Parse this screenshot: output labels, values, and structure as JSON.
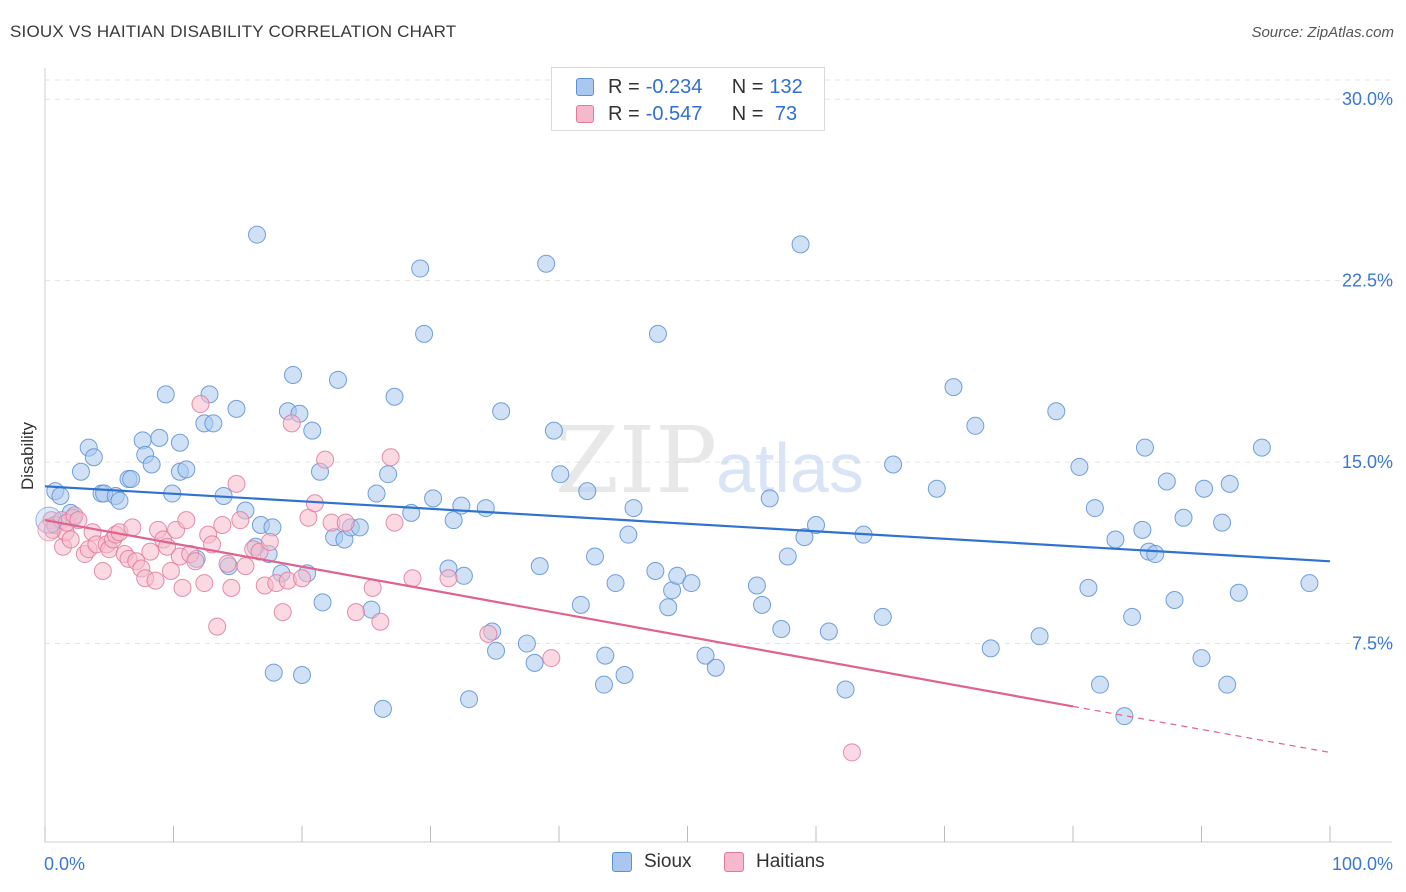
{
  "header": {
    "title": "SIOUX VS HAITIAN DISABILITY CORRELATION CHART",
    "source": "Source: ZipAtlas.com"
  },
  "legend": {
    "rows": [
      {
        "r_label": "R = ",
        "r_value": "-0.234",
        "n_label": "N = ",
        "n_value": "132"
      },
      {
        "r_label": "R = ",
        "r_value": "-0.547",
        "n_label": "N = ",
        "n_value": " 73"
      }
    ]
  },
  "watermark": {
    "zip": "ZIP",
    "atlas": "atlas"
  },
  "colors": {
    "sioux_fill": "#aac8ef",
    "sioux_stroke": "#5b8fd6",
    "sioux_line": "#2f72d0",
    "haitian_fill": "#f6b9cb",
    "haitian_stroke": "#e07a9c",
    "haitian_line": "#e0628e",
    "tick_label": "#3a78d4",
    "grid": "#e3e3e3"
  },
  "chart_data": {
    "type": "scatter",
    "title": "SIOUX VS HAITIAN DISABILITY CORRELATION CHART",
    "xlabel": "",
    "ylabel": "Disability",
    "xlim": [
      0,
      100
    ],
    "ylim": [
      0,
      31
    ],
    "x_tick_labels": [
      "0.0%",
      "100.0%"
    ],
    "y_ticks": [
      7.5,
      15.0,
      22.5,
      30.0
    ],
    "y_tick_labels": [
      "7.5%",
      "15.0%",
      "22.5%",
      "30.0%"
    ],
    "grid": "horizontal dashed",
    "legend_position": "top-center",
    "series": [
      {
        "name": "Sioux",
        "r": -0.234,
        "n": 132,
        "trend": {
          "x0": 0,
          "y0": 14.0,
          "x1": 100,
          "y1": 10.9
        },
        "points": [
          [
            0.8,
            13.8
          ],
          [
            1.2,
            13.6
          ],
          [
            2.0,
            12.9
          ],
          [
            2.2,
            12.7
          ],
          [
            2.8,
            14.6
          ],
          [
            3.4,
            15.6
          ],
          [
            3.8,
            15.2
          ],
          [
            4.4,
            13.7
          ],
          [
            4.6,
            13.7
          ],
          [
            5.5,
            13.6
          ],
          [
            5.8,
            13.4
          ],
          [
            6.5,
            14.3
          ],
          [
            6.7,
            14.3
          ],
          [
            7.6,
            15.9
          ],
          [
            7.8,
            15.3
          ],
          [
            8.3,
            14.9
          ],
          [
            8.9,
            16.0
          ],
          [
            9.4,
            17.8
          ],
          [
            9.9,
            13.7
          ],
          [
            10.5,
            14.6
          ],
          [
            10.5,
            15.8
          ],
          [
            11.0,
            14.7
          ],
          [
            11.8,
            11.0
          ],
          [
            12.4,
            16.6
          ],
          [
            12.8,
            17.8
          ],
          [
            13.1,
            16.6
          ],
          [
            13.9,
            13.6
          ],
          [
            14.3,
            10.7
          ],
          [
            14.9,
            17.2
          ],
          [
            15.6,
            13.0
          ],
          [
            16.4,
            11.5
          ],
          [
            16.5,
            24.4
          ],
          [
            16.8,
            12.4
          ],
          [
            17.4,
            11.2
          ],
          [
            17.7,
            12.3
          ],
          [
            17.8,
            6.3
          ],
          [
            18.4,
            10.4
          ],
          [
            18.9,
            17.1
          ],
          [
            19.3,
            18.6
          ],
          [
            19.8,
            17.0
          ],
          [
            20.0,
            6.2
          ],
          [
            20.4,
            10.4
          ],
          [
            20.8,
            16.3
          ],
          [
            21.4,
            14.6
          ],
          [
            21.6,
            9.2
          ],
          [
            22.5,
            11.9
          ],
          [
            22.8,
            18.4
          ],
          [
            23.3,
            11.8
          ],
          [
            23.8,
            12.3
          ],
          [
            24.5,
            12.3
          ],
          [
            25.4,
            8.9
          ],
          [
            25.8,
            13.7
          ],
          [
            26.3,
            4.8
          ],
          [
            26.7,
            14.5
          ],
          [
            27.2,
            17.7
          ],
          [
            28.5,
            12.9
          ],
          [
            29.2,
            23.0
          ],
          [
            29.5,
            20.3
          ],
          [
            30.2,
            13.5
          ],
          [
            31.4,
            10.6
          ],
          [
            31.8,
            12.6
          ],
          [
            32.4,
            13.2
          ],
          [
            32.6,
            10.3
          ],
          [
            33.0,
            5.2
          ],
          [
            34.3,
            13.1
          ],
          [
            34.8,
            8.0
          ],
          [
            35.1,
            7.2
          ],
          [
            35.5,
            17.1
          ],
          [
            37.5,
            7.5
          ],
          [
            38.1,
            6.7
          ],
          [
            38.5,
            10.7
          ],
          [
            39.0,
            23.2
          ],
          [
            39.6,
            16.3
          ],
          [
            40.1,
            14.5
          ],
          [
            41.7,
            9.1
          ],
          [
            42.2,
            13.8
          ],
          [
            42.8,
            11.1
          ],
          [
            43.5,
            5.8
          ],
          [
            43.6,
            7.0
          ],
          [
            44.4,
            10.0
          ],
          [
            45.1,
            6.2
          ],
          [
            45.4,
            12.0
          ],
          [
            45.8,
            13.1
          ],
          [
            47.5,
            10.5
          ],
          [
            47.7,
            20.3
          ],
          [
            48.5,
            9.0
          ],
          [
            48.8,
            9.7
          ],
          [
            49.2,
            10.3
          ],
          [
            50.3,
            10.0
          ],
          [
            51.4,
            7.0
          ],
          [
            52.2,
            6.5
          ],
          [
            55.4,
            9.9
          ],
          [
            55.8,
            9.1
          ],
          [
            56.4,
            13.5
          ],
          [
            57.3,
            8.1
          ],
          [
            57.8,
            11.1
          ],
          [
            58.8,
            24.0
          ],
          [
            59.1,
            11.9
          ],
          [
            60.0,
            12.4
          ],
          [
            61.0,
            8.0
          ],
          [
            62.3,
            5.6
          ],
          [
            63.7,
            12.0
          ],
          [
            65.2,
            8.6
          ],
          [
            66.0,
            14.9
          ],
          [
            69.4,
            13.9
          ],
          [
            70.7,
            18.1
          ],
          [
            72.4,
            16.5
          ],
          [
            73.6,
            7.3
          ],
          [
            77.4,
            7.8
          ],
          [
            78.7,
            17.1
          ],
          [
            80.5,
            14.8
          ],
          [
            81.2,
            9.8
          ],
          [
            81.7,
            13.1
          ],
          [
            82.1,
            5.8
          ],
          [
            83.3,
            11.8
          ],
          [
            84.0,
            4.5
          ],
          [
            84.6,
            8.6
          ],
          [
            85.4,
            12.2
          ],
          [
            85.6,
            15.6
          ],
          [
            85.9,
            11.3
          ],
          [
            86.4,
            11.2
          ],
          [
            87.3,
            14.2
          ],
          [
            87.9,
            9.3
          ],
          [
            88.6,
            12.7
          ],
          [
            90.0,
            6.9
          ],
          [
            90.2,
            13.9
          ],
          [
            91.6,
            12.5
          ],
          [
            92.0,
            5.8
          ],
          [
            92.2,
            14.1
          ],
          [
            92.9,
            9.6
          ],
          [
            94.7,
            15.6
          ],
          [
            98.4,
            10.0
          ]
        ]
      },
      {
        "name": "Haitians",
        "r": -0.547,
        "n": 73,
        "trend": {
          "x0": 0,
          "y0": 12.6,
          "x1": 80,
          "y1": 4.9,
          "dash_to_x": 100,
          "dash_to_y": 3.0
        },
        "points": [
          [
            0.5,
            12.6
          ],
          [
            0.6,
            12.2
          ],
          [
            0.8,
            12.4
          ],
          [
            1.3,
            12.6
          ],
          [
            1.4,
            11.5
          ],
          [
            1.6,
            12.1
          ],
          [
            1.7,
            12.5
          ],
          [
            2.0,
            11.8
          ],
          [
            2.3,
            12.8
          ],
          [
            2.6,
            12.6
          ],
          [
            3.1,
            11.2
          ],
          [
            3.4,
            11.4
          ],
          [
            3.7,
            12.1
          ],
          [
            4.0,
            11.6
          ],
          [
            4.5,
            10.5
          ],
          [
            4.8,
            11.6
          ],
          [
            5.0,
            11.4
          ],
          [
            5.3,
            11.8
          ],
          [
            5.5,
            12.0
          ],
          [
            5.8,
            12.1
          ],
          [
            6.2,
            11.2
          ],
          [
            6.5,
            11.0
          ],
          [
            6.8,
            12.3
          ],
          [
            7.1,
            10.9
          ],
          [
            7.5,
            10.6
          ],
          [
            7.8,
            10.2
          ],
          [
            8.2,
            11.3
          ],
          [
            8.6,
            10.1
          ],
          [
            8.8,
            12.2
          ],
          [
            9.2,
            11.8
          ],
          [
            9.5,
            11.5
          ],
          [
            9.8,
            10.5
          ],
          [
            10.2,
            12.2
          ],
          [
            10.5,
            11.1
          ],
          [
            10.7,
            9.8
          ],
          [
            11.0,
            12.6
          ],
          [
            11.3,
            11.2
          ],
          [
            11.7,
            10.9
          ],
          [
            12.1,
            17.4
          ],
          [
            12.4,
            10.0
          ],
          [
            12.7,
            12.0
          ],
          [
            13.0,
            11.6
          ],
          [
            13.4,
            8.2
          ],
          [
            13.8,
            12.4
          ],
          [
            14.2,
            10.8
          ],
          [
            14.5,
            9.8
          ],
          [
            14.9,
            14.1
          ],
          [
            15.2,
            12.6
          ],
          [
            15.6,
            10.7
          ],
          [
            16.2,
            11.4
          ],
          [
            16.7,
            11.3
          ],
          [
            17.1,
            9.9
          ],
          [
            17.5,
            11.7
          ],
          [
            18.0,
            10.0
          ],
          [
            18.5,
            8.8
          ],
          [
            18.9,
            10.1
          ],
          [
            19.2,
            16.6
          ],
          [
            20.0,
            10.2
          ],
          [
            20.5,
            12.7
          ],
          [
            21.0,
            13.3
          ],
          [
            21.8,
            15.1
          ],
          [
            22.3,
            12.5
          ],
          [
            23.4,
            12.5
          ],
          [
            24.2,
            8.8
          ],
          [
            25.5,
            9.8
          ],
          [
            26.1,
            8.4
          ],
          [
            26.9,
            15.2
          ],
          [
            27.2,
            12.5
          ],
          [
            28.6,
            10.2
          ],
          [
            31.4,
            10.2
          ],
          [
            34.5,
            7.9
          ],
          [
            39.4,
            6.9
          ],
          [
            62.8,
            3.0
          ]
        ]
      }
    ]
  },
  "bottom_legend": {
    "sioux": "Sioux",
    "haitians": "Haitians"
  }
}
